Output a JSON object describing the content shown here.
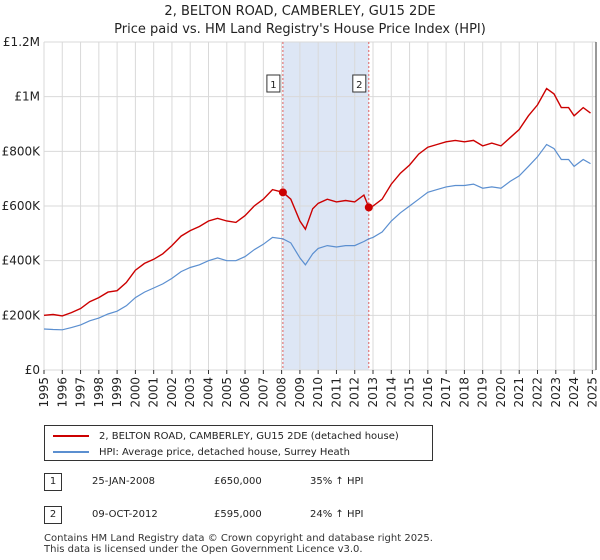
{
  "chart_data": {
    "type": "line",
    "title": "2, BELTON ROAD, CAMBERLEY, GU15 2DE",
    "subtitle": "Price paid vs. HM Land Registry's House Price Index (HPI)",
    "ylim": [
      0,
      1200000
    ],
    "xlim": [
      1995,
      2025.2
    ],
    "y_ticks": [
      {
        "value": 0,
        "label": "£0"
      },
      {
        "value": 200000,
        "label": "£200K"
      },
      {
        "value": 400000,
        "label": "£400K"
      },
      {
        "value": 600000,
        "label": "£600K"
      },
      {
        "value": 800000,
        "label": "£800K"
      },
      {
        "value": 1000000,
        "label": "£1M"
      },
      {
        "value": 1200000,
        "label": "£1.2M"
      }
    ],
    "x_ticks": [
      "1995",
      "1996",
      "1997",
      "1998",
      "1999",
      "2000",
      "2001",
      "2002",
      "2003",
      "2004",
      "2005",
      "2006",
      "2007",
      "2008",
      "2009",
      "2010",
      "2011",
      "2012",
      "2013",
      "2014",
      "2015",
      "2016",
      "2017",
      "2018",
      "2019",
      "2020",
      "2021",
      "2022",
      "2023",
      "2024",
      "2025"
    ],
    "grid": true,
    "highlight_band": [
      2008.07,
      2012.77
    ],
    "series": [
      {
        "name": "2, BELTON ROAD, CAMBERLEY, GU15 2DE (detached house)",
        "color": "#cc0000",
        "points": [
          [
            1995.0,
            200000
          ],
          [
            1995.5,
            203000
          ],
          [
            1996.0,
            198000
          ],
          [
            1996.5,
            210000
          ],
          [
            1997.0,
            225000
          ],
          [
            1997.5,
            250000
          ],
          [
            1998.0,
            265000
          ],
          [
            1998.5,
            285000
          ],
          [
            1999.0,
            290000
          ],
          [
            1999.5,
            320000
          ],
          [
            2000.0,
            365000
          ],
          [
            2000.5,
            390000
          ],
          [
            2001.0,
            405000
          ],
          [
            2001.5,
            425000
          ],
          [
            2002.0,
            455000
          ],
          [
            2002.5,
            490000
          ],
          [
            2003.0,
            510000
          ],
          [
            2003.5,
            525000
          ],
          [
            2004.0,
            545000
          ],
          [
            2004.5,
            555000
          ],
          [
            2005.0,
            545000
          ],
          [
            2005.5,
            540000
          ],
          [
            2006.0,
            565000
          ],
          [
            2006.5,
            600000
          ],
          [
            2007.0,
            625000
          ],
          [
            2007.5,
            660000
          ],
          [
            2008.07,
            650000
          ],
          [
            2008.5,
            625000
          ],
          [
            2009.0,
            545000
          ],
          [
            2009.3,
            515000
          ],
          [
            2009.7,
            590000
          ],
          [
            2010.0,
            610000
          ],
          [
            2010.5,
            625000
          ],
          [
            2011.0,
            615000
          ],
          [
            2011.5,
            620000
          ],
          [
            2012.0,
            615000
          ],
          [
            2012.5,
            640000
          ],
          [
            2012.77,
            595000
          ],
          [
            2013.0,
            600000
          ],
          [
            2013.5,
            625000
          ],
          [
            2014.0,
            680000
          ],
          [
            2014.5,
            720000
          ],
          [
            2015.0,
            750000
          ],
          [
            2015.5,
            790000
          ],
          [
            2016.0,
            815000
          ],
          [
            2016.5,
            825000
          ],
          [
            2017.0,
            835000
          ],
          [
            2017.5,
            840000
          ],
          [
            2018.0,
            835000
          ],
          [
            2018.5,
            840000
          ],
          [
            2019.0,
            820000
          ],
          [
            2019.5,
            830000
          ],
          [
            2020.0,
            820000
          ],
          [
            2020.5,
            850000
          ],
          [
            2021.0,
            880000
          ],
          [
            2021.5,
            930000
          ],
          [
            2022.0,
            970000
          ],
          [
            2022.5,
            1030000
          ],
          [
            2022.9,
            1010000
          ],
          [
            2023.3,
            960000
          ],
          [
            2023.7,
            960000
          ],
          [
            2024.0,
            930000
          ],
          [
            2024.5,
            960000
          ],
          [
            2024.9,
            940000
          ]
        ]
      },
      {
        "name": "HPI: Average price, detached house, Surrey Heath",
        "color": "#5b8fd0",
        "points": [
          [
            1995.0,
            150000
          ],
          [
            1995.5,
            148000
          ],
          [
            1996.0,
            147000
          ],
          [
            1996.5,
            155000
          ],
          [
            1997.0,
            165000
          ],
          [
            1997.5,
            180000
          ],
          [
            1998.0,
            190000
          ],
          [
            1998.5,
            205000
          ],
          [
            1999.0,
            215000
          ],
          [
            1999.5,
            235000
          ],
          [
            2000.0,
            265000
          ],
          [
            2000.5,
            285000
          ],
          [
            2001.0,
            300000
          ],
          [
            2001.5,
            315000
          ],
          [
            2002.0,
            335000
          ],
          [
            2002.5,
            360000
          ],
          [
            2003.0,
            375000
          ],
          [
            2003.5,
            385000
          ],
          [
            2004.0,
            400000
          ],
          [
            2004.5,
            410000
          ],
          [
            2005.0,
            400000
          ],
          [
            2005.5,
            400000
          ],
          [
            2006.0,
            415000
          ],
          [
            2006.5,
            440000
          ],
          [
            2007.0,
            460000
          ],
          [
            2007.5,
            485000
          ],
          [
            2008.07,
            480000
          ],
          [
            2008.5,
            465000
          ],
          [
            2009.0,
            410000
          ],
          [
            2009.3,
            385000
          ],
          [
            2009.7,
            425000
          ],
          [
            2010.0,
            445000
          ],
          [
            2010.5,
            455000
          ],
          [
            2011.0,
            450000
          ],
          [
            2011.5,
            455000
          ],
          [
            2012.0,
            455000
          ],
          [
            2012.5,
            470000
          ],
          [
            2012.77,
            480000
          ],
          [
            2013.0,
            485000
          ],
          [
            2013.5,
            505000
          ],
          [
            2014.0,
            545000
          ],
          [
            2014.5,
            575000
          ],
          [
            2015.0,
            600000
          ],
          [
            2015.5,
            625000
          ],
          [
            2016.0,
            650000
          ],
          [
            2016.5,
            660000
          ],
          [
            2017.0,
            670000
          ],
          [
            2017.5,
            675000
          ],
          [
            2018.0,
            675000
          ],
          [
            2018.5,
            680000
          ],
          [
            2019.0,
            665000
          ],
          [
            2019.5,
            670000
          ],
          [
            2020.0,
            665000
          ],
          [
            2020.5,
            690000
          ],
          [
            2021.0,
            710000
          ],
          [
            2021.5,
            745000
          ],
          [
            2022.0,
            780000
          ],
          [
            2022.5,
            825000
          ],
          [
            2022.9,
            810000
          ],
          [
            2023.3,
            770000
          ],
          [
            2023.7,
            770000
          ],
          [
            2024.0,
            745000
          ],
          [
            2024.5,
            770000
          ],
          [
            2024.9,
            755000
          ]
        ]
      }
    ],
    "sales": [
      {
        "id": "1",
        "x": 2008.07,
        "price": 650000,
        "date": "25-JAN-2008",
        "price_label": "£650,000",
        "hpi_label": "35% ↑ HPI"
      },
      {
        "id": "2",
        "x": 2012.77,
        "price": 595000,
        "date": "09-OCT-2012",
        "price_label": "£595,000",
        "hpi_label": "24% ↑ HPI"
      }
    ]
  },
  "legend": {
    "property_label": "2, BELTON ROAD, CAMBERLEY, GU15 2DE (detached house)",
    "hpi_label": "HPI: Average price, detached house, Surrey Heath"
  },
  "footer": {
    "line1": "Contains HM Land Registry data © Crown copyright and database right 2025.",
    "line2": "This data is licensed under the Open Government Licence v3.0."
  },
  "colors": {
    "property": "#cc0000",
    "hpi": "#5b8fd0",
    "grid": "#d9d9d9",
    "band": "#dde6f5",
    "marker_line": "#e06060"
  }
}
